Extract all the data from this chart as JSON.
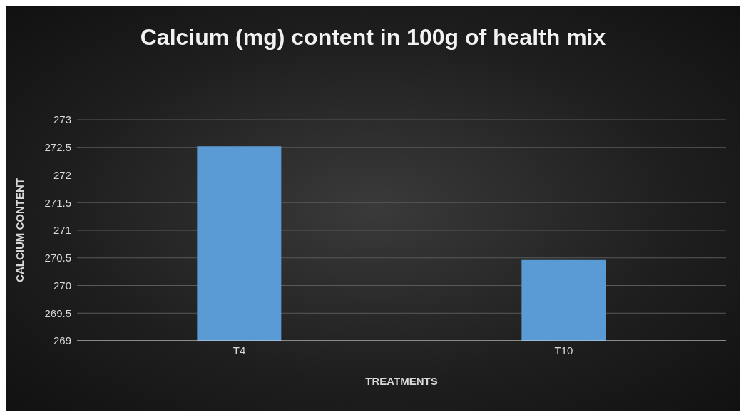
{
  "chart_data": {
    "type": "bar",
    "title": "Calcium (mg) content in 100g of health mix",
    "xlabel": "TREATMENTS",
    "ylabel": "CALCIUM CONTENT",
    "categories": [
      "T4",
      "T10"
    ],
    "values": [
      272.52,
      270.46
    ],
    "color": "#5b9bd5",
    "ylim": [
      269,
      273
    ],
    "yticks": [
      269,
      269.5,
      270,
      270.5,
      271,
      271.5,
      272,
      272.5,
      273
    ],
    "grid": "y"
  }
}
